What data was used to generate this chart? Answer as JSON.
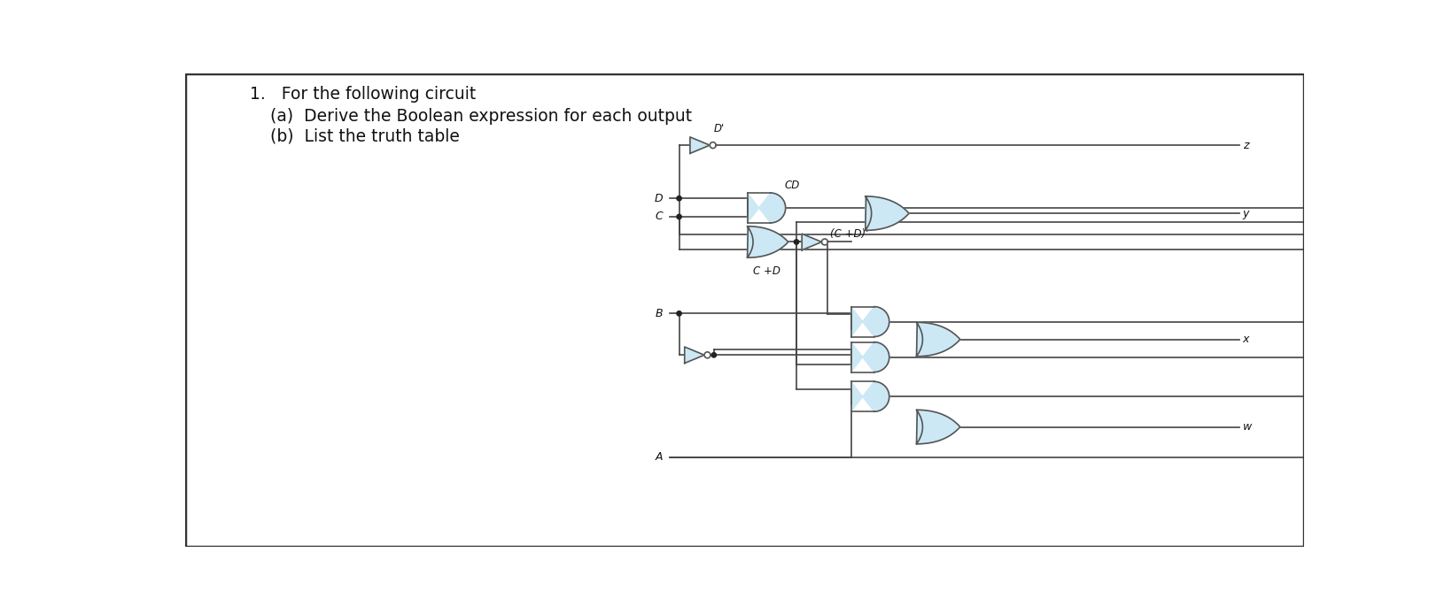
{
  "bg_color": "#ffffff",
  "gate_fill": "#cce8f4",
  "gate_edge": "#555555",
  "wire_color": "#444444",
  "text_color": "#111111",
  "title_line1": "1.   For the following circuit",
  "title_line2": "(a)  Derive the Boolean expression for each output",
  "title_line3": "(b)  List the truth table"
}
